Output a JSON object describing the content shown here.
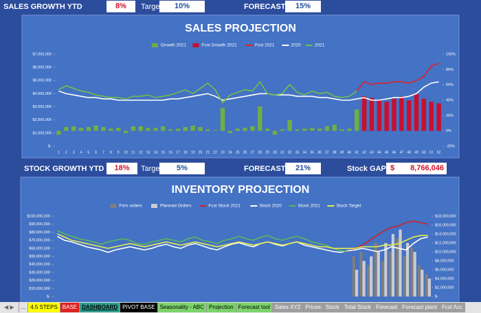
{
  "kpis": {
    "sales": {
      "label": "SALES GROWTH YTD",
      "value": "8%",
      "target_label": "Target",
      "target": "10%",
      "forecast_label": "FORECAST",
      "forecast": "15%"
    },
    "stock": {
      "label": "STOCK GROWTH YTD",
      "value": "18%",
      "target_label": "Target",
      "target": "5%",
      "forecast_label": "FORECAST",
      "forecast": "21%",
      "gap_label": "Stock GAP",
      "gap_currency": "$",
      "gap": "8,766,046"
    }
  },
  "charts": [
    {
      "type": "combo",
      "title": "SALES PROJECTION",
      "bar_layout": "overlap",
      "categories": [
        1,
        2,
        3,
        4,
        5,
        6,
        7,
        8,
        9,
        10,
        11,
        12,
        13,
        14,
        15,
        16,
        17,
        18,
        19,
        20,
        21,
        22,
        23,
        24,
        25,
        26,
        27,
        28,
        29,
        30,
        31,
        32,
        33,
        34,
        35,
        36,
        37,
        38,
        39,
        40,
        41,
        42,
        43,
        44,
        45,
        46,
        47,
        48,
        49,
        50,
        51,
        52
      ],
      "ylim": [
        0,
        7000000
      ],
      "yticks": [
        {
          "value": 0,
          "label": "$-"
        },
        {
          "value": 1000000,
          "label": "$1,000,000"
        },
        {
          "value": 2000000,
          "label": "$2,000,000"
        },
        {
          "value": 3000000,
          "label": "$3,000,000"
        },
        {
          "value": 4000000,
          "label": "$4,000,000"
        },
        {
          "value": 5000000,
          "label": "$5,000,000"
        },
        {
          "value": 6000000,
          "label": "$6,000,000"
        },
        {
          "value": 7000000,
          "label": "$7,000,000"
        }
      ],
      "y2lim": [
        -20,
        100
      ],
      "y2ticks": [
        {
          "value": -20,
          "label": "-20%"
        },
        {
          "value": 0,
          "label": "0%"
        },
        {
          "value": 20,
          "label": "20%"
        },
        {
          "value": 40,
          "label": "40%"
        },
        {
          "value": 60,
          "label": "60%"
        },
        {
          "value": 80,
          "label": "80%"
        },
        {
          "value": 100,
          "label": "100%"
        }
      ],
      "series": [
        {
          "name": "Growth 2021",
          "type": "bar",
          "axis": "y2",
          "color": "#70ad47",
          "values": [
            -5,
            5,
            6,
            4,
            5,
            7,
            5,
            3,
            4,
            -3,
            6,
            6,
            4,
            4,
            6,
            2,
            3,
            5,
            7,
            5,
            2,
            1,
            30,
            -3,
            3,
            4,
            6,
            32,
            3,
            -5,
            2,
            14,
            2,
            3,
            4,
            3,
            6,
            8,
            2,
            3,
            28,
            null,
            null,
            null,
            null,
            null,
            null,
            null,
            null,
            null,
            null,
            null
          ]
        },
        {
          "name": "Fcst Growth 2021",
          "type": "bar",
          "axis": "y2",
          "color": "#c8102e",
          "values": [
            null,
            null,
            null,
            null,
            null,
            null,
            null,
            null,
            null,
            null,
            null,
            null,
            null,
            null,
            null,
            null,
            null,
            null,
            null,
            null,
            null,
            null,
            null,
            null,
            null,
            null,
            null,
            null,
            null,
            null,
            null,
            null,
            null,
            null,
            null,
            null,
            null,
            null,
            null,
            null,
            null,
            45,
            43,
            40,
            38,
            42,
            45,
            40,
            48,
            42,
            38,
            36
          ]
        },
        {
          "name": "Fcst 2021",
          "type": "line",
          "color": "#e0202a",
          "values": [
            null,
            null,
            null,
            null,
            null,
            null,
            null,
            null,
            null,
            null,
            null,
            null,
            null,
            null,
            null,
            null,
            null,
            null,
            null,
            null,
            null,
            null,
            null,
            null,
            null,
            null,
            null,
            null,
            null,
            null,
            null,
            null,
            null,
            null,
            null,
            null,
            null,
            null,
            null,
            null,
            4200000,
            4900000,
            4700000,
            4800000,
            4800000,
            4900000,
            4900000,
            4800000,
            5000000,
            5300000,
            6100000,
            6300000
          ]
        },
        {
          "name": "2020",
          "type": "line",
          "color": "#ffffff",
          "values": [
            4200000,
            4000000,
            3900000,
            3800000,
            3700000,
            3700000,
            3600000,
            3600000,
            3500000,
            3500000,
            3500000,
            3500000,
            3500000,
            3500000,
            3500000,
            3600000,
            3600000,
            3700000,
            3800000,
            3900000,
            4000000,
            3800000,
            3500000,
            3600000,
            3700000,
            3800000,
            3900000,
            4000000,
            4000000,
            3900000,
            3900000,
            3900000,
            3800000,
            3800000,
            3800000,
            3700000,
            3700000,
            3600000,
            3500000,
            3500000,
            3600000,
            3700000,
            3500000,
            3500000,
            3600000,
            3700000,
            3700000,
            3800000,
            4000000,
            4500000,
            4800000,
            4900000
          ]
        },
        {
          "name": "2021",
          "type": "line",
          "color": "#70c04a",
          "values": [
            4300000,
            4600000,
            4400000,
            4200000,
            4100000,
            3900000,
            3800000,
            3700000,
            3700000,
            3600000,
            3800000,
            3800000,
            3900000,
            3700000,
            3800000,
            3900000,
            4100000,
            4300000,
            4000000,
            4400000,
            4800000,
            4300000,
            3300000,
            3900000,
            4100000,
            4300000,
            4200000,
            4900000,
            4000000,
            3900000,
            4000000,
            4700000,
            4100000,
            3900000,
            4200000,
            4000000,
            4100000,
            3800000,
            3700000,
            3800000,
            4200000,
            null,
            null,
            null,
            null,
            null,
            null,
            null,
            null,
            null,
            null,
            null
          ]
        }
      ]
    },
    {
      "type": "combo",
      "title": "INVENTORY PROJECTION",
      "bar_layout": "grouped",
      "ylim": [
        0,
        100000000
      ],
      "yticks": [
        {
          "value": 0,
          "label": "$-"
        },
        {
          "value": 10000000,
          "label": "$10,000,000"
        },
        {
          "value": 20000000,
          "label": "$20,000,000"
        },
        {
          "value": 30000000,
          "label": "$30,000,000"
        },
        {
          "value": 40000000,
          "label": "$40,000,000"
        },
        {
          "value": 50000000,
          "label": "$50,000,000"
        },
        {
          "value": 60000000,
          "label": "$60,000,000"
        },
        {
          "value": 70000000,
          "label": "$70,000,000"
        },
        {
          "value": 80000000,
          "label": "$80,000,000"
        },
        {
          "value": 90000000,
          "label": "$90,000,000"
        },
        {
          "value": 100000000,
          "label": "$100,000,000"
        }
      ],
      "y2lim": [
        0,
        18000000
      ],
      "y2ticks": [
        {
          "value": 0,
          "label": "$-"
        },
        {
          "value": 2000000,
          "label": "$2,000,000"
        },
        {
          "value": 4000000,
          "label": "$4,000,000"
        },
        {
          "value": 6000000,
          "label": "$6,000,000"
        },
        {
          "value": 8000000,
          "label": "$8,000,000"
        },
        {
          "value": 10000000,
          "label": "$10,000,000"
        },
        {
          "value": 12000000,
          "label": "$12,000,000"
        },
        {
          "value": 14000000,
          "label": "$14,000,000"
        },
        {
          "value": 16000000,
          "label": "$16,000,000"
        },
        {
          "value": 18000000,
          "label": "$18,000,000"
        }
      ],
      "series": [
        {
          "name": "Firm orders",
          "type": "bar",
          "axis": "y2",
          "color": "#7f7f7f",
          "values": [
            null,
            null,
            null,
            null,
            null,
            null,
            null,
            null,
            null,
            null,
            null,
            null,
            null,
            null,
            null,
            null,
            null,
            null,
            null,
            null,
            null,
            null,
            null,
            null,
            null,
            null,
            null,
            null,
            null,
            null,
            null,
            null,
            null,
            null,
            null,
            null,
            null,
            null,
            null,
            null,
            null,
            9000000,
            10000000,
            7000000,
            12000000,
            8000000,
            10000000,
            13000000,
            9000000,
            11000000,
            7000000,
            5000000
          ]
        },
        {
          "name": "Planned Orders",
          "type": "bar",
          "axis": "y2",
          "color": "#c9ccd6",
          "values": [
            null,
            null,
            null,
            null,
            null,
            null,
            null,
            null,
            null,
            null,
            null,
            null,
            null,
            null,
            null,
            null,
            null,
            null,
            null,
            null,
            null,
            null,
            null,
            null,
            null,
            null,
            null,
            null,
            null,
            null,
            null,
            null,
            null,
            null,
            null,
            null,
            null,
            null,
            null,
            null,
            null,
            6000000,
            8000000,
            9000000,
            10000000,
            12000000,
            14000000,
            15000000,
            12000000,
            10000000,
            6000000,
            4000000
          ]
        },
        {
          "name": "Fcst Stock 2021",
          "type": "line",
          "color": "#d0202a",
          "values": [
            null,
            null,
            null,
            null,
            null,
            null,
            null,
            null,
            null,
            null,
            null,
            null,
            null,
            null,
            null,
            null,
            null,
            null,
            null,
            null,
            null,
            null,
            null,
            null,
            null,
            null,
            null,
            null,
            null,
            null,
            null,
            null,
            null,
            null,
            null,
            null,
            null,
            null,
            null,
            null,
            56000000,
            60000000,
            64000000,
            70000000,
            76000000,
            82000000,
            86000000,
            88000000,
            92000000,
            94000000,
            92000000,
            90000000
          ]
        },
        {
          "name": "Stock 2020",
          "type": "line",
          "color": "#ffffff",
          "values": [
            75000000,
            70000000,
            68000000,
            65000000,
            62000000,
            60000000,
            58000000,
            55000000,
            58000000,
            60000000,
            62000000,
            60000000,
            58000000,
            60000000,
            63000000,
            65000000,
            62000000,
            60000000,
            64000000,
            66000000,
            63000000,
            60000000,
            58000000,
            62000000,
            65000000,
            67000000,
            64000000,
            62000000,
            66000000,
            68000000,
            65000000,
            63000000,
            66000000,
            68000000,
            64000000,
            62000000,
            60000000,
            58000000,
            56000000,
            55000000,
            57000000,
            58000000,
            60000000,
            58000000,
            56000000,
            58000000,
            62000000,
            60000000,
            58000000,
            66000000,
            72000000,
            74000000
          ]
        },
        {
          "name": "Stock 2021",
          "type": "line",
          "color": "#5cb85c",
          "values": [
            82000000,
            78000000,
            75000000,
            72000000,
            70000000,
            68000000,
            65000000,
            68000000,
            70000000,
            72000000,
            70000000,
            66000000,
            65000000,
            68000000,
            70000000,
            72000000,
            70000000,
            68000000,
            72000000,
            74000000,
            70000000,
            68000000,
            66000000,
            70000000,
            72000000,
            75000000,
            72000000,
            70000000,
            74000000,
            76000000,
            72000000,
            70000000,
            73000000,
            75000000,
            72000000,
            68000000,
            66000000,
            64000000,
            60000000,
            57000000,
            56000000,
            null,
            null,
            null,
            null,
            null,
            null,
            null,
            null,
            null,
            null,
            null
          ]
        },
        {
          "name": "Stock Target",
          "type": "line",
          "color": "#e8f04a",
          "values": [
            78000000,
            74000000,
            70000000,
            68000000,
            66000000,
            64000000,
            62000000,
            60000000,
            62000000,
            64000000,
            66000000,
            64000000,
            62000000,
            64000000,
            66000000,
            68000000,
            66000000,
            64000000,
            66000000,
            68000000,
            66000000,
            64000000,
            62000000,
            64000000,
            66000000,
            68000000,
            66000000,
            64000000,
            66000000,
            68000000,
            66000000,
            64000000,
            66000000,
            68000000,
            66000000,
            64000000,
            62000000,
            62000000,
            60000000,
            60000000,
            60000000,
            60000000,
            62000000,
            62000000,
            62000000,
            64000000,
            64000000,
            66000000,
            70000000,
            74000000,
            76000000,
            76000000
          ]
        }
      ]
    }
  ],
  "tabs": {
    "more": "...",
    "items": [
      "4.5 STEPS",
      "BASE",
      "DASHBOARD",
      "PIVOT BASE",
      "Seasonality - ABC",
      "Projection",
      "Forecast tool",
      "Sales XYZ",
      "Prices",
      "Stock",
      "Total Stock",
      "Forecast",
      "Forecast plant",
      "Fcst Acc"
    ]
  }
}
